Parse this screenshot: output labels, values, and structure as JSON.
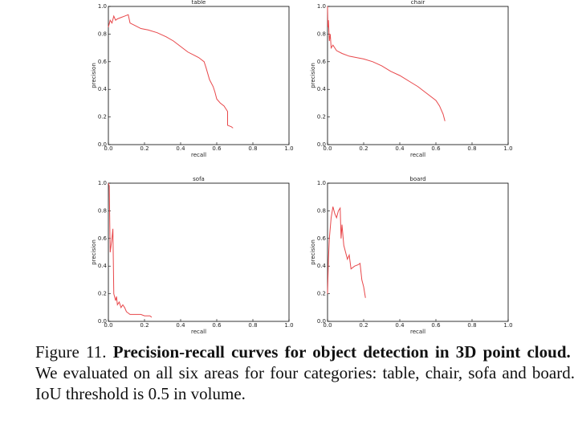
{
  "chart_data": [
    {
      "type": "line",
      "title": "table",
      "xlabel": "recall",
      "ylabel": "precision",
      "x": [
        0,
        0.01,
        0.02,
        0.03,
        0.04,
        0.05,
        0.07,
        0.09,
        0.11,
        0.12,
        0.15,
        0.18,
        0.22,
        0.27,
        0.32,
        0.36,
        0.4,
        0.44,
        0.47,
        0.5,
        0.53,
        0.54,
        0.56,
        0.58,
        0.59,
        0.6,
        0.62,
        0.64,
        0.65,
        0.66,
        0.66,
        0.68,
        0.69
      ],
      "series": [
        {
          "color": "#e8474a",
          "values": [
            0.85,
            0.9,
            0.88,
            0.93,
            0.9,
            0.91,
            0.92,
            0.93,
            0.94,
            0.88,
            0.86,
            0.84,
            0.83,
            0.81,
            0.78,
            0.75,
            0.71,
            0.67,
            0.65,
            0.63,
            0.6,
            0.56,
            0.47,
            0.42,
            0.38,
            0.33,
            0.3,
            0.28,
            0.26,
            0.24,
            0.14,
            0.13,
            0.12
          ]
        }
      ],
      "xlim": [
        0,
        1
      ],
      "ylim": [
        0,
        1
      ],
      "xticks": [
        {
          "value": 0,
          "label": "0.0"
        },
        0.2,
        0.4,
        0.6,
        0.8,
        {
          "value": 1,
          "label": "1.0"
        }
      ],
      "yticks": [
        {
          "value": 0,
          "label": "0.0"
        },
        0.2,
        0.4,
        0.6,
        0.8,
        {
          "value": 1,
          "label": "1.0"
        }
      ]
    },
    {
      "type": "line",
      "title": "chair",
      "xlabel": "recall",
      "ylabel": "precision",
      "x": [
        0,
        0.002,
        0.005,
        0.01,
        0.015,
        0.02,
        0.03,
        0.05,
        0.08,
        0.12,
        0.16,
        0.2,
        0.25,
        0.3,
        0.35,
        0.4,
        0.45,
        0.5,
        0.55,
        0.6,
        0.62,
        0.64,
        0.65
      ],
      "series": [
        {
          "color": "#e8474a",
          "values": [
            1.0,
            0.85,
            0.9,
            0.75,
            0.8,
            0.7,
            0.72,
            0.68,
            0.66,
            0.64,
            0.63,
            0.62,
            0.6,
            0.57,
            0.53,
            0.5,
            0.46,
            0.42,
            0.37,
            0.32,
            0.28,
            0.22,
            0.17
          ]
        }
      ],
      "xlim": [
        0,
        1
      ],
      "ylim": [
        0,
        1
      ],
      "xticks": [
        {
          "value": 0,
          "label": "0.0"
        },
        0.2,
        0.4,
        0.6,
        0.8,
        {
          "value": 1,
          "label": "1.0"
        }
      ],
      "yticks": [
        {
          "value": 0,
          "label": "0.0"
        },
        0.2,
        0.4,
        0.6,
        0.8,
        {
          "value": 1,
          "label": "1.0"
        }
      ]
    },
    {
      "type": "line",
      "title": "sofa",
      "xlabel": "recall",
      "ylabel": "precision",
      "x": [
        0,
        0.005,
        0.01,
        0.015,
        0.02,
        0.025,
        0.03,
        0.04,
        0.045,
        0.05,
        0.06,
        0.07,
        0.08,
        0.09,
        0.1,
        0.12,
        0.15,
        0.18,
        0.2,
        0.23,
        0.24
      ],
      "series": [
        {
          "color": "#e8474a",
          "values": [
            1.0,
            0.98,
            0.5,
            0.55,
            0.6,
            0.67,
            0.2,
            0.15,
            0.18,
            0.12,
            0.14,
            0.1,
            0.12,
            0.1,
            0.07,
            0.05,
            0.05,
            0.05,
            0.04,
            0.04,
            0.03
          ]
        }
      ],
      "xlim": [
        0,
        1
      ],
      "ylim": [
        0,
        1
      ],
      "xticks": [
        {
          "value": 0,
          "label": "0.0"
        },
        0.2,
        0.4,
        0.6,
        0.8,
        {
          "value": 1,
          "label": "1.0"
        }
      ],
      "yticks": [
        {
          "value": 0,
          "label": "0.0"
        },
        0.2,
        0.4,
        0.6,
        0.8,
        {
          "value": 1,
          "label": "1.0"
        }
      ]
    },
    {
      "type": "line",
      "title": "board",
      "xlabel": "recall",
      "ylabel": "precision",
      "x": [
        0,
        0.005,
        0.01,
        0.02,
        0.03,
        0.04,
        0.05,
        0.06,
        0.07,
        0.075,
        0.08,
        0.09,
        0.1,
        0.11,
        0.12,
        0.13,
        0.15,
        0.17,
        0.18,
        0.19,
        0.2,
        0.21
      ],
      "series": [
        {
          "color": "#e8474a",
          "values": [
            0.2,
            0.45,
            0.6,
            0.75,
            0.83,
            0.78,
            0.75,
            0.8,
            0.82,
            0.6,
            0.7,
            0.55,
            0.5,
            0.45,
            0.48,
            0.38,
            0.4,
            0.41,
            0.42,
            0.3,
            0.25,
            0.17
          ]
        }
      ],
      "xlim": [
        0,
        1
      ],
      "ylim": [
        0,
        1
      ],
      "xticks": [
        {
          "value": 0,
          "label": "0.0"
        },
        0.2,
        0.4,
        0.6,
        0.8,
        {
          "value": 1,
          "label": "1.0"
        }
      ],
      "yticks": [
        {
          "value": 0,
          "label": "0.0"
        },
        0.2,
        0.4,
        0.6,
        0.8,
        {
          "value": 1,
          "label": "1.0"
        }
      ]
    }
  ],
  "caption": {
    "label": "Figure 11.",
    "bold": "Precision-recall curves for object detection in 3D point cloud.",
    "text": "We evaluated on all six areas for four categories: table, chair, sofa and board. IoU threshold is 0.5 in volume."
  }
}
